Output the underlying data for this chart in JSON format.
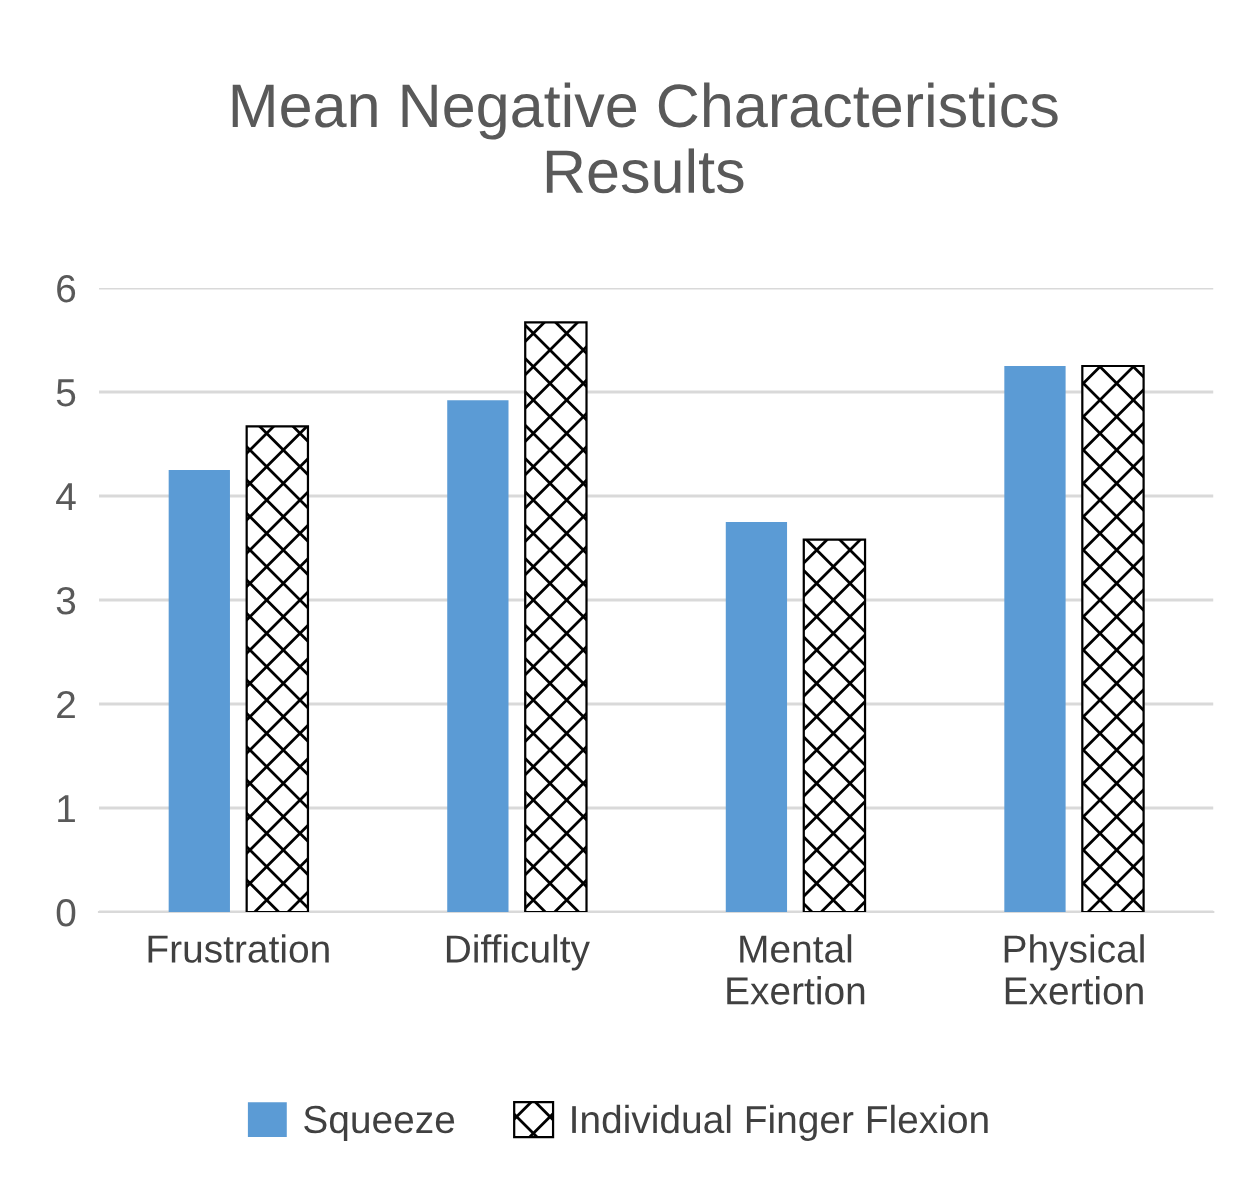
{
  "chart_data": {
    "type": "bar",
    "title": "Mean Negative Characteristics\nResults",
    "categories": [
      "Frustration",
      "Difficulty",
      "Mental\nExertion",
      "Physical\nExertion"
    ],
    "series": [
      {
        "name": "Squeeze",
        "color": "#5b9bd5",
        "values": [
          4.25,
          4.92,
          3.75,
          5.25
        ]
      },
      {
        "name": "Individual Finger Flexion",
        "color": "#000000",
        "values": [
          4.67,
          5.67,
          3.58,
          5.25
        ]
      }
    ],
    "ylim": [
      0,
      6
    ],
    "yticks": [
      0,
      1,
      2,
      3,
      4,
      5,
      6
    ],
    "grid": "y",
    "legend": "bottom"
  }
}
